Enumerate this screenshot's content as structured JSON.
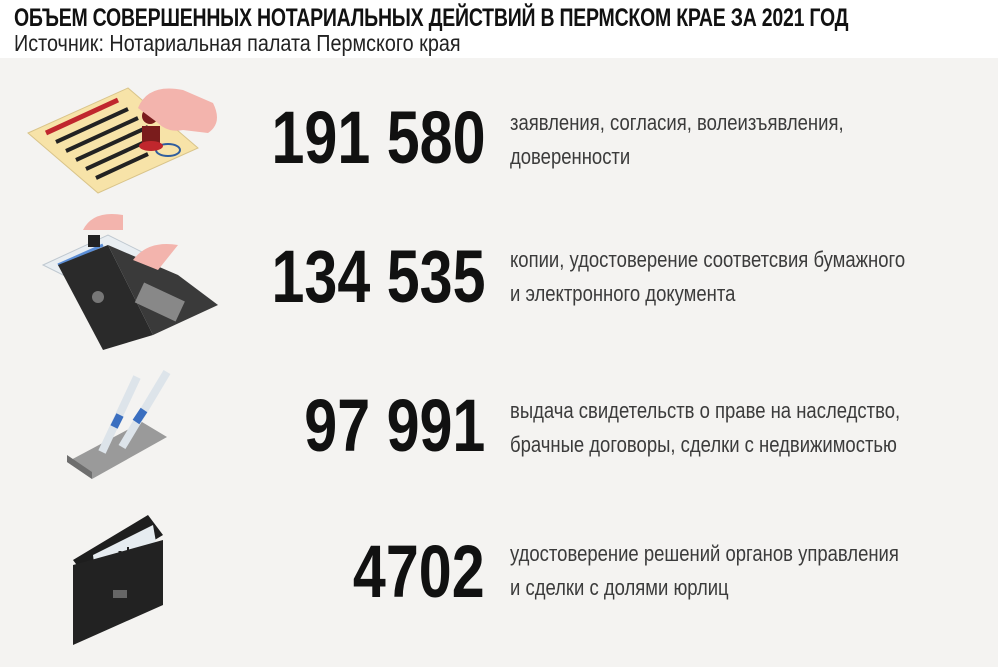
{
  "header": {
    "title": "ОБЪЕМ СОВЕРШЕННЫХ НОТАРИАЛЬНЫХ ДЕЙСТВИЙ В ПЕРМСКОМ КРАЕ ЗА 2021 ГОД",
    "source": "Источник: Нотариальная палата Пермского края"
  },
  "items": [
    {
      "value": "191 580",
      "lines": [
        "заявления, согласия, волеизъявления,",
        "доверенности"
      ],
      "icon": "stamp-document-icon"
    },
    {
      "value": "134 535",
      "lines": [
        "копии, удостоверение соответсвия бумажного",
        "и электронного документа"
      ],
      "icon": "laptop-stamp-icon"
    },
    {
      "value": "97 991",
      "lines": [
        "выдача свидетельств о праве на наследство,",
        "брачные договоры, сделки с недвижимостью"
      ],
      "icon": "pens-icon"
    },
    {
      "value": "4702",
      "lines": [
        "удостоверение решений органов управления",
        "и сделки с долями юрлиц"
      ],
      "icon": "folder-documents-icon"
    }
  ],
  "colors": {
    "background": "#f4f3f1",
    "text": "#111111",
    "accent_red": "#c0272d",
    "paper": "#f7e3a8",
    "skin": "#f3b4ad"
  }
}
